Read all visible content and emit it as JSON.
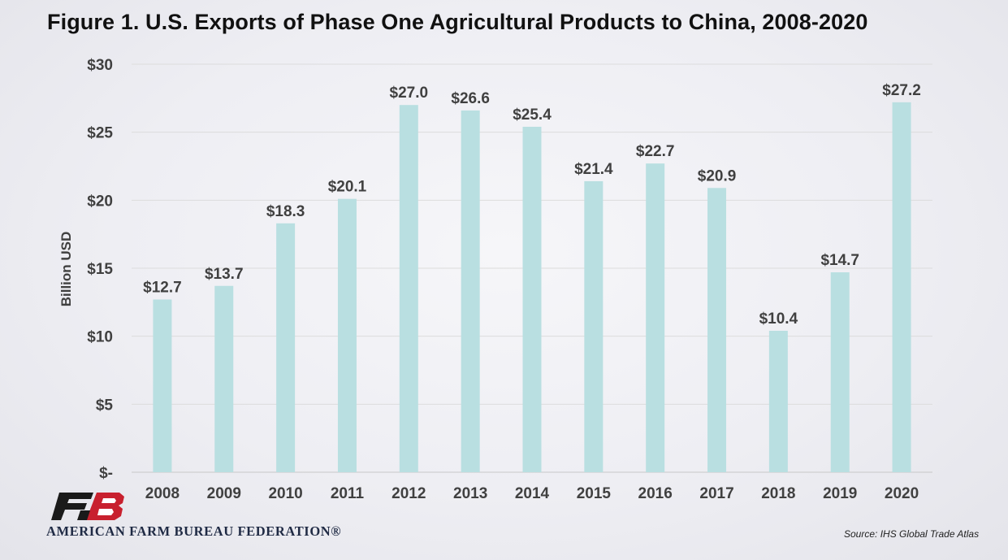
{
  "title": "Figure 1. U.S. Exports of Phase One Agricultural Products to China, 2008-2020",
  "source": "Source: IHS Global Trade Atlas",
  "logo": {
    "text": "AMERICAN FARM BUREAU FEDERATION®",
    "mark_letters": "FB"
  },
  "colors": {
    "bar": "#b9dfe1",
    "logo_red": "#c8202e",
    "logo_dark": "#1a1a1a",
    "grid": "#dcdcdc",
    "text": "#404040"
  },
  "chart_data": {
    "type": "bar",
    "ylabel": "Billion USD",
    "xlabel": "",
    "ylim": [
      0,
      30
    ],
    "grid": true,
    "categories": [
      "2008",
      "2009",
      "2010",
      "2011",
      "2012",
      "2013",
      "2014",
      "2015",
      "2016",
      "2017",
      "2018",
      "2019",
      "2020"
    ],
    "values": [
      12.7,
      13.7,
      18.3,
      20.1,
      27.0,
      26.6,
      25.4,
      21.4,
      22.7,
      20.9,
      10.4,
      14.7,
      27.2
    ],
    "data_labels": [
      "$12.7",
      "$13.7",
      "$18.3",
      "$20.1",
      "$27.0",
      "$26.6",
      "$25.4",
      "$21.4",
      "$22.7",
      "$20.9",
      "$10.4",
      "$14.7",
      "$27.2"
    ],
    "y_ticks": [
      0,
      5,
      10,
      15,
      20,
      25,
      30
    ],
    "y_tick_labels": [
      "$-",
      "$5",
      "$10",
      "$15",
      "$20",
      "$25",
      "$30"
    ]
  }
}
